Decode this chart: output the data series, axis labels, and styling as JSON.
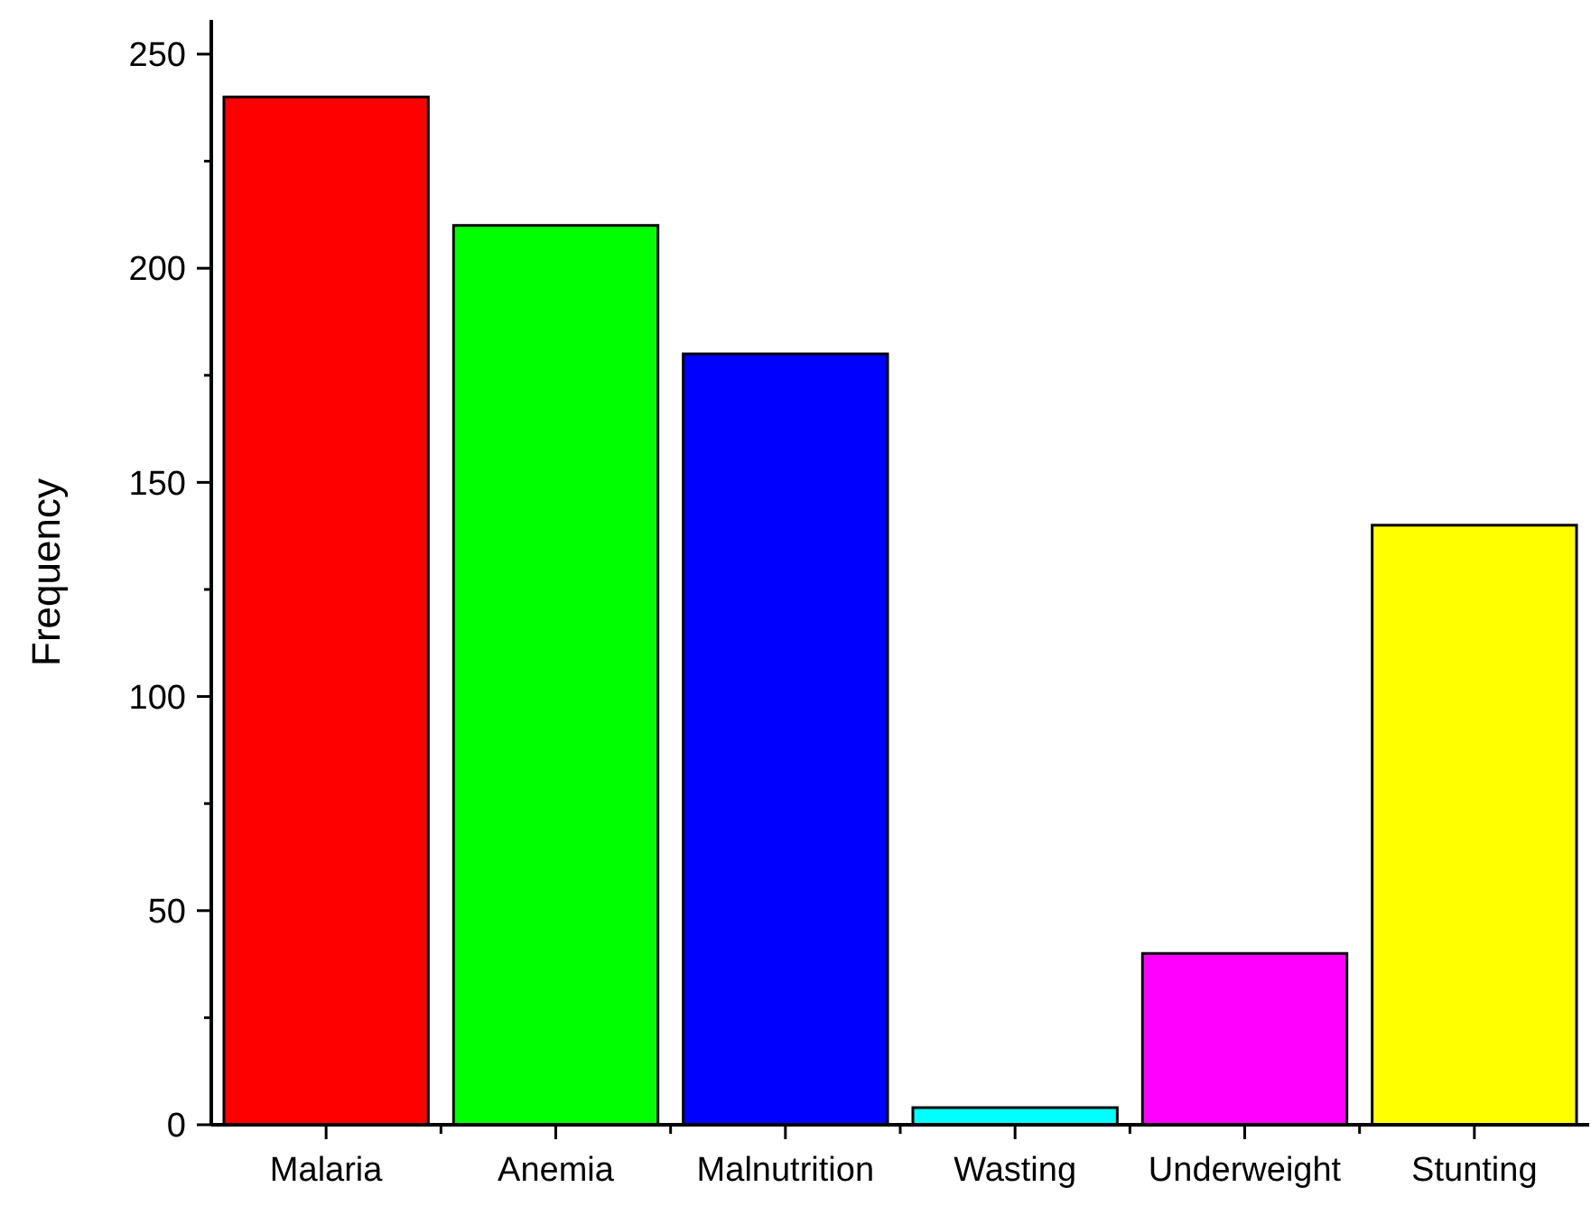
{
  "chart_data": {
    "type": "bar",
    "ylabel": "Frequency",
    "categories": [
      "Malaria",
      "Anemia",
      "Malnutrition",
      "Wasting",
      "Underweight",
      "Stunting"
    ],
    "values": [
      240,
      210,
      180,
      4,
      40,
      140
    ],
    "colors": [
      "#ff0000",
      "#00ff00",
      "#0000ff",
      "#00ffff",
      "#ff00ff",
      "#ffff00"
    ],
    "ylim": [
      0,
      258
    ],
    "yticks": [
      0,
      {
        "value": 25,
        "label": null
      },
      50,
      {
        "value": 75,
        "label": null
      },
      100,
      {
        "value": 125,
        "label": null
      },
      150,
      {
        "value": 175,
        "label": null
      },
      200,
      {
        "value": 225,
        "label": null
      },
      250
    ],
    "grid": false
  }
}
